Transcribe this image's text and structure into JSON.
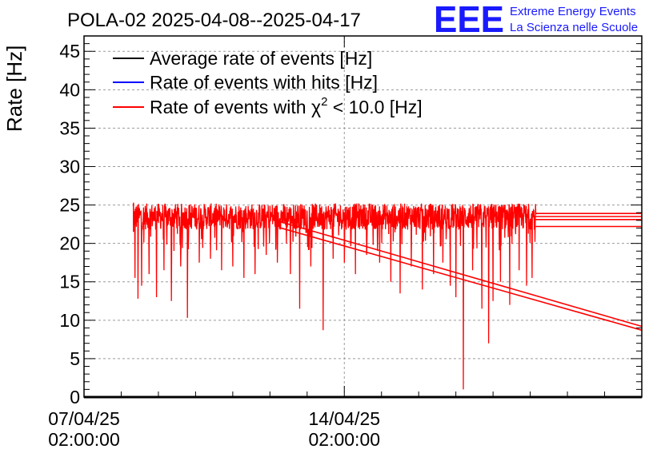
{
  "logo": {
    "mark": "EEE",
    "line1": "Extreme Energy Events",
    "line2": "La Scienza nelle Scuole"
  },
  "chart_data": {
    "type": "line",
    "title": "POLA-02 2025-04-08--2025-04-17",
    "xlabel": "",
    "ylabel": "Rate [Hz]",
    "ylim": [
      0,
      47
    ],
    "yticks": [
      0,
      5,
      10,
      15,
      20,
      25,
      30,
      35,
      40,
      45
    ],
    "x_unit": "days since 07/04/25 02:00:00",
    "xlim": [
      0,
      15
    ],
    "xticks": [
      {
        "x": 0,
        "date": "07/04/25",
        "time": "02:00:00"
      },
      {
        "x": 7,
        "date": "14/04/25",
        "time": "02:00:00"
      }
    ],
    "grid": true,
    "legend_position": "top-left",
    "legend": [
      {
        "label_main": "Average rate of events [Hz]",
        "sup": "",
        "label_tail": "",
        "color": "#000000"
      },
      {
        "label_main": "Rate of events with hits [Hz]",
        "sup": "",
        "label_tail": "",
        "color": "#0000ff"
      },
      {
        "label_main": "Rate of events with χ",
        "sup": "2",
        "label_tail": " < 10.0 [Hz]",
        "color": "#ff0000"
      }
    ],
    "series": [
      {
        "name": "Rate of events with χ2 < 10.0 [Hz]",
        "color": "#ff0000",
        "x_range": [
          1.33,
          12.15
        ],
        "baseline": 23.5,
        "noise_band": [
          21.5,
          25.3
        ],
        "dips": [
          {
            "x": 1.37,
            "y": 15.5
          },
          {
            "x": 1.45,
            "y": 12.8
          },
          {
            "x": 1.55,
            "y": 14.5
          },
          {
            "x": 1.75,
            "y": 16.0
          },
          {
            "x": 1.95,
            "y": 13.0
          },
          {
            "x": 2.15,
            "y": 16.5
          },
          {
            "x": 2.35,
            "y": 12.5
          },
          {
            "x": 2.6,
            "y": 17.0
          },
          {
            "x": 2.78,
            "y": 10.3
          },
          {
            "x": 3.1,
            "y": 17.5
          },
          {
            "x": 3.4,
            "y": 18.0
          },
          {
            "x": 3.7,
            "y": 16.5
          },
          {
            "x": 4.0,
            "y": 17.0
          },
          {
            "x": 4.3,
            "y": 15.5
          },
          {
            "x": 4.6,
            "y": 16.0
          },
          {
            "x": 4.9,
            "y": 18.5
          },
          {
            "x": 5.2,
            "y": 17.5
          },
          {
            "x": 5.55,
            "y": 16.0
          },
          {
            "x": 5.8,
            "y": 11.5
          },
          {
            "x": 6.1,
            "y": 17.0
          },
          {
            "x": 6.43,
            "y": 8.7
          },
          {
            "x": 6.7,
            "y": 18.0
          },
          {
            "x": 7.0,
            "y": 17.5
          },
          {
            "x": 7.3,
            "y": 16.0
          },
          {
            "x": 7.6,
            "y": 18.5
          },
          {
            "x": 7.95,
            "y": 17.5
          },
          {
            "x": 8.25,
            "y": 15.0
          },
          {
            "x": 8.5,
            "y": 13.5
          },
          {
            "x": 8.8,
            "y": 17.0
          },
          {
            "x": 9.1,
            "y": 14.0
          },
          {
            "x": 9.4,
            "y": 16.0
          },
          {
            "x": 9.65,
            "y": 17.5
          },
          {
            "x": 9.85,
            "y": 14.5
          },
          {
            "x": 10.0,
            "y": 13.0
          },
          {
            "x": 10.2,
            "y": 1.0
          },
          {
            "x": 10.45,
            "y": 16.5
          },
          {
            "x": 10.7,
            "y": 11.5
          },
          {
            "x": 10.88,
            "y": 7.0
          },
          {
            "x": 11.0,
            "y": 12.5
          },
          {
            "x": 11.2,
            "y": 15.0
          },
          {
            "x": 11.45,
            "y": 12.0
          },
          {
            "x": 11.7,
            "y": 16.5
          },
          {
            "x": 11.9,
            "y": 14.5
          },
          {
            "x": 12.05,
            "y": 15.5
          }
        ],
        "flat_lines": [
          {
            "x0": 12.15,
            "x1": 15.0,
            "y": 23.9
          },
          {
            "x0": 12.15,
            "x1": 15.0,
            "y": 23.5
          },
          {
            "x0": 12.15,
            "x1": 15.0,
            "y": 23.1
          },
          {
            "x0": 12.15,
            "x1": 15.0,
            "y": 22.2
          }
        ],
        "trend_lines": [
          {
            "x0": 5.15,
            "y0": 23.0,
            "x1": 15.0,
            "y1": 9.2
          },
          {
            "x0": 5.3,
            "y0": 22.0,
            "x1": 15.0,
            "y1": 8.7
          }
        ]
      }
    ]
  }
}
